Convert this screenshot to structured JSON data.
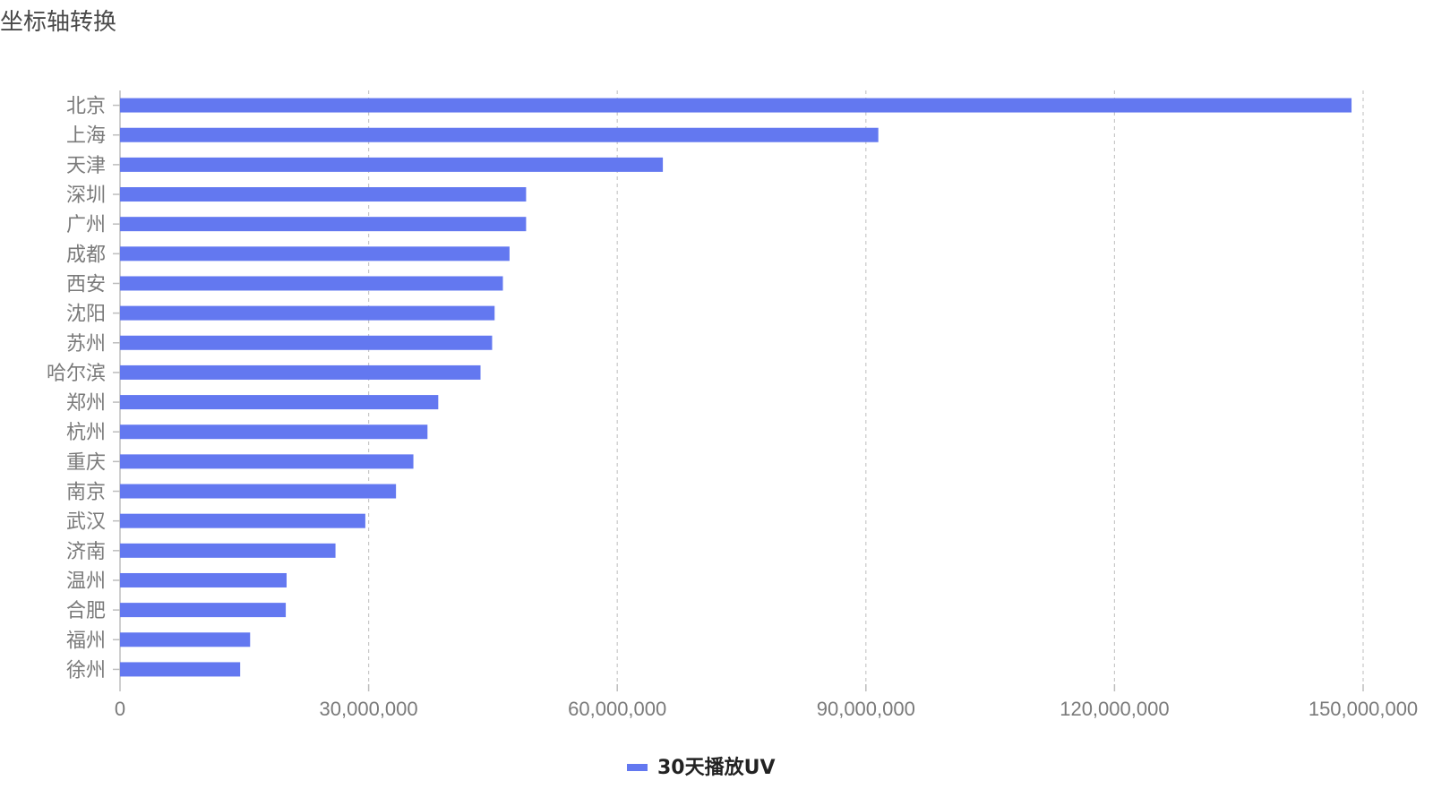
{
  "chart_data": {
    "type": "bar",
    "orientation": "horizontal",
    "title": "坐标轴转换",
    "categories": [
      "北京",
      "上海",
      "天津",
      "深圳",
      "广州",
      "成都",
      "西安",
      "沈阳",
      "苏州",
      "哈尔滨",
      "郑州",
      "杭州",
      "重庆",
      "南京",
      "武汉",
      "济南",
      "温州",
      "合肥",
      "福州",
      "徐州"
    ],
    "series": [
      {
        "name": "30天播放UV",
        "color": "#6378f0",
        "values": [
          148600000,
          91500000,
          65500000,
          49000000,
          49000000,
          47000000,
          46200000,
          45200000,
          44900000,
          43500000,
          38400000,
          37100000,
          35400000,
          33300000,
          29600000,
          26000000,
          20100000,
          20000000,
          15700000,
          14500000
        ]
      }
    ],
    "x_ticks": [
      "0",
      "30,000,000",
      "60,000,000",
      "90,000,000",
      "120,000,000",
      "150,000,000"
    ],
    "xlim": [
      0,
      150000000
    ],
    "grid": "vertical dashed",
    "legend_position": "bottom-center"
  }
}
